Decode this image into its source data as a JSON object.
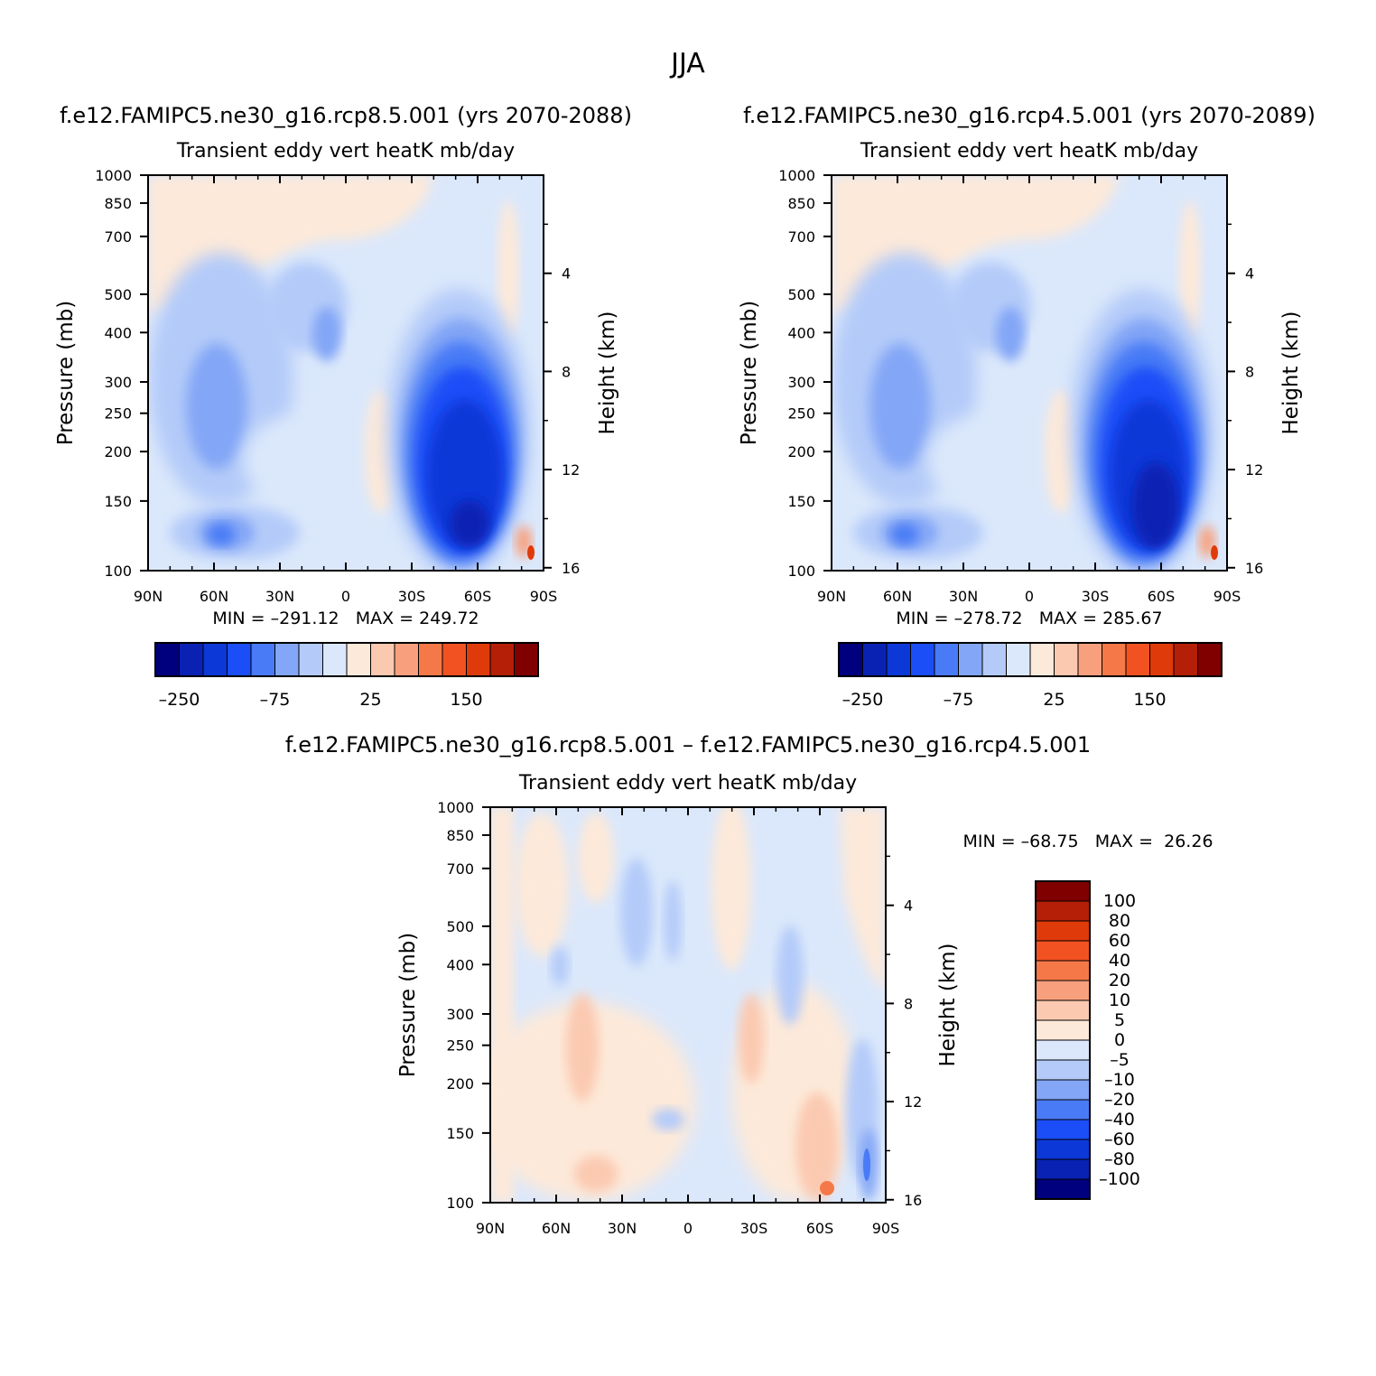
{
  "figure": {
    "season": "JJA",
    "diff_title": "f.e12.FAMIPC5.ne30_g16.rcp8.5.001 – f.e12.FAMIPC5.ne30_g16.rcp4.5.001"
  },
  "colors": {
    "top_scale": [
      "#00007f",
      "#0a22b4",
      "#0d38d8",
      "#1b4ef7",
      "#4a7bf6",
      "#83a6f6",
      "#b4cbf9",
      "#dbe8fb",
      "#fde9d9",
      "#fbc9b0",
      "#f8a07e",
      "#f57848",
      "#f25222",
      "#df3a0a",
      "#b51f07",
      "#800000"
    ],
    "diff_scale": [
      "#00007f",
      "#0a22b4",
      "#0d38d8",
      "#1b4ef7",
      "#4a7bf6",
      "#83a6f6",
      "#b4cbf9",
      "#dbe8fb",
      "#fde9d9",
      "#fbc9b0",
      "#f8a07e",
      "#f57848",
      "#f25222",
      "#df3a0a",
      "#b51f07",
      "#800000"
    ]
  },
  "chart_data": [
    {
      "type": "heatmap",
      "case": "f.e12.FAMIPC5.ne30_g16.rcp8.5.001 (yrs 2070-2088)",
      "title": "Transient eddy vert heatK mb/day",
      "xlabel": "",
      "ylabel": "Pressure (mb)",
      "y2label": "Height (km)",
      "x_ticks": [
        "90N",
        "60N",
        "30N",
        "0",
        "30S",
        "60S",
        "90S"
      ],
      "y_ticks": [
        100,
        150,
        200,
        250,
        300,
        400,
        500,
        700,
        850,
        1000
      ],
      "y2_ticks": [
        16,
        12,
        8,
        4
      ],
      "yscale": "log",
      "ylim": [
        1000,
        100
      ],
      "stats": "MIN = –291.12   MAX = 249.72",
      "min": -291.12,
      "max": 249.72,
      "colorbar_labels": [
        "–250",
        "–75",
        "25",
        "150"
      ],
      "colorbar_orientation": "horizontal"
    },
    {
      "type": "heatmap",
      "case": "f.e12.FAMIPC5.ne30_g16.rcp4.5.001 (yrs 2070-2089)",
      "title": "Transient eddy vert heatK mb/day",
      "xlabel": "",
      "ylabel": "Pressure (mb)",
      "y2label": "Height (km)",
      "x_ticks": [
        "90N",
        "60N",
        "30N",
        "0",
        "30S",
        "60S",
        "90S"
      ],
      "y_ticks": [
        100,
        150,
        200,
        250,
        300,
        400,
        500,
        700,
        850,
        1000
      ],
      "y2_ticks": [
        16,
        12,
        8,
        4
      ],
      "yscale": "log",
      "ylim": [
        1000,
        100
      ],
      "stats": "MIN = –278.72   MAX = 285.67",
      "min": -278.72,
      "max": 285.67,
      "colorbar_labels": [
        "–250",
        "–75",
        "25",
        "150"
      ],
      "colorbar_orientation": "horizontal"
    },
    {
      "type": "heatmap",
      "case": "f.e12.FAMIPC5.ne30_g16.rcp8.5.001 – f.e12.FAMIPC5.ne30_g16.rcp4.5.001",
      "title": "Transient eddy vert heatK mb/day",
      "xlabel": "",
      "ylabel": "Pressure (mb)",
      "y2label": "Height (km)",
      "x_ticks": [
        "90N",
        "60N",
        "30N",
        "0",
        "30S",
        "60S",
        "90S"
      ],
      "y_ticks": [
        100,
        150,
        200,
        250,
        300,
        400,
        500,
        700,
        850,
        1000
      ],
      "y2_ticks": [
        16,
        12,
        8,
        4
      ],
      "yscale": "log",
      "ylim": [
        1000,
        100
      ],
      "stats": "MIN = –68.75   MAX =  26.26",
      "min": -68.75,
      "max": 26.26,
      "colorbar_labels": [
        "100",
        "80",
        "60",
        "40",
        "20",
        "10",
        "5",
        "0",
        "–5",
        "–10",
        "–20",
        "–40",
        "–60",
        "–80",
        "–100"
      ],
      "colorbar_orientation": "vertical"
    }
  ]
}
